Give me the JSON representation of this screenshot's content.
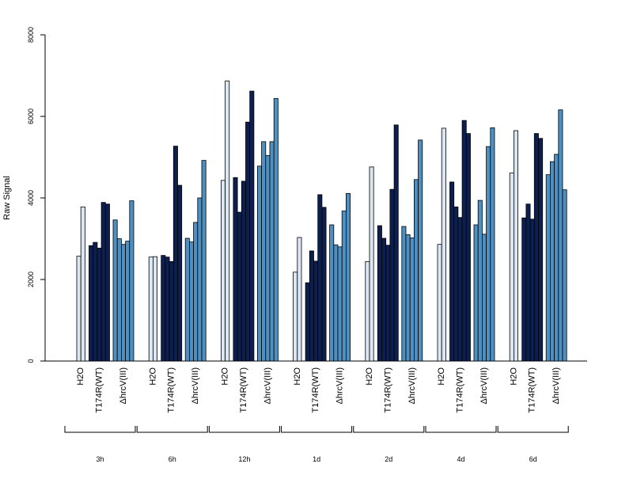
{
  "chart_data": {
    "type": "bar",
    "title": "",
    "ylabel": "Raw Signal",
    "xlabel": "",
    "ylim": [
      0,
      8000
    ],
    "yticks": [
      0,
      2000,
      4000,
      6000,
      8000
    ],
    "grid": false,
    "colors": {
      "H2O": "#dbe6f3",
      "T174R(WT)": "#0d1f4f",
      "ΔhrcV(III)": "#4f90c2"
    },
    "groups": [
      {
        "label": "3h",
        "treatments": [
          {
            "name": "H2O",
            "values": [
              2570,
              3780
            ]
          },
          {
            "name": "T174R(WT)",
            "values": [
              2830,
              2910,
              2770,
              3890,
              3850
            ]
          },
          {
            "name": "ΔhrcV(III)",
            "values": [
              3460,
              3000,
              2860,
              2940,
              3930
            ]
          }
        ]
      },
      {
        "label": "6h",
        "treatments": [
          {
            "name": "H2O",
            "values": [
              2550,
              2560
            ]
          },
          {
            "name": "T174R(WT)",
            "values": [
              2590,
              2550,
              2440,
              5270,
              4310
            ]
          },
          {
            "name": "ΔhrcV(III)",
            "values": [
              3010,
              2920,
              3400,
              4000,
              4920
            ]
          }
        ]
      },
      {
        "label": "12h",
        "treatments": [
          {
            "name": "H2O",
            "values": [
              4430,
              6870
            ]
          },
          {
            "name": "T174R(WT)",
            "values": [
              4500,
              3650,
              4410,
              5860,
              6620
            ]
          },
          {
            "name": "ΔhrcV(III)",
            "values": [
              4780,
              5380,
              5040,
              5380,
              6440
            ]
          }
        ]
      },
      {
        "label": "1d",
        "treatments": [
          {
            "name": "H2O",
            "values": [
              2180,
              3030
            ]
          },
          {
            "name": "T174R(WT)",
            "values": [
              1920,
              2700,
              2450,
              4080,
              3770
            ]
          },
          {
            "name": "ΔhrcV(III)",
            "values": [
              3340,
              2850,
              2800,
              3680,
              4110
            ]
          }
        ]
      },
      {
        "label": "2d",
        "treatments": [
          {
            "name": "H2O",
            "values": [
              2440,
              4760
            ]
          },
          {
            "name": "T174R(WT)",
            "values": [
              3320,
              3010,
              2840,
              4210,
              5790
            ]
          },
          {
            "name": "ΔhrcV(III)",
            "values": [
              3300,
              3100,
              3020,
              4450,
              5420
            ]
          }
        ]
      },
      {
        "label": "4d",
        "treatments": [
          {
            "name": "H2O",
            "values": [
              2860,
              5710
            ]
          },
          {
            "name": "T174R(WT)",
            "values": [
              4390,
              3780,
              3520,
              5900,
              5580
            ]
          },
          {
            "name": "ΔhrcV(III)",
            "values": [
              3340,
              3940,
              3110,
              5260,
              5720
            ]
          }
        ]
      },
      {
        "label": "6d",
        "treatments": [
          {
            "name": "H2O",
            "values": [
              4610,
              5650
            ]
          },
          {
            "name": "T174R(WT)",
            "values": [
              3510,
              3850,
              3480,
              5580,
              5460
            ]
          },
          {
            "name": "ΔhrcV(III)",
            "values": [
              4570,
              4890,
              5070,
              6160,
              4200
            ]
          }
        ]
      }
    ]
  }
}
